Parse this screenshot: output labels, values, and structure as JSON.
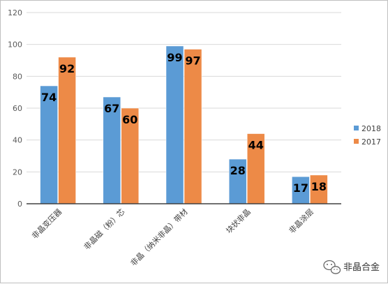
{
  "chart_data": {
    "type": "bar",
    "categories": [
      "非晶变压器",
      "非晶磁（粉）芯",
      "非晶（纳米非晶）带材",
      "块状非晶",
      "非晶涂层"
    ],
    "series": [
      {
        "name": "2018",
        "values": [
          74,
          67,
          99,
          28,
          17
        ],
        "color": "#5b9bd5"
      },
      {
        "name": "2017",
        "values": [
          92,
          60,
          97,
          44,
          18
        ],
        "color": "#ed8a47"
      }
    ],
    "ylim": [
      0,
      120
    ],
    "yticks": [
      0,
      20,
      40,
      60,
      80,
      100,
      120
    ],
    "grid": true,
    "legend_position": "right"
  },
  "watermark": {
    "text": "非晶合金",
    "icon": "wechat-icon"
  }
}
